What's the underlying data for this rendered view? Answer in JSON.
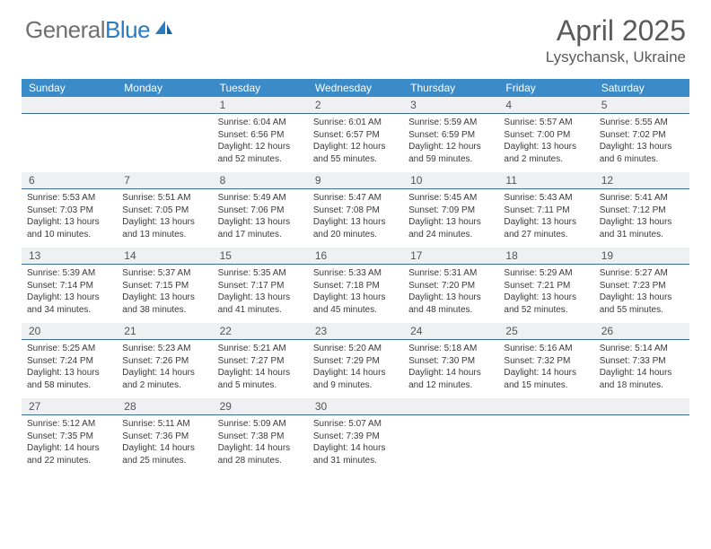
{
  "brand": {
    "name_gray": "General",
    "name_blue": "Blue"
  },
  "title": "April 2025",
  "location": "Lysychansk, Ukraine",
  "weekdays": [
    "Sunday",
    "Monday",
    "Tuesday",
    "Wednesday",
    "Thursday",
    "Friday",
    "Saturday"
  ],
  "colors": {
    "header_bar": "#3b8bc8",
    "daynum_bg": "#eef0f2",
    "rule": "#3b6fa0",
    "text": "#3a3a3a",
    "title_text": "#5a5a5a",
    "logo_gray": "#6f6f6f",
    "logo_blue": "#2a7bbf"
  },
  "weeks": [
    [
      null,
      null,
      {
        "d": "1",
        "sr": "Sunrise: 6:04 AM",
        "ss": "Sunset: 6:56 PM",
        "dl": "Daylight: 12 hours and 52 minutes."
      },
      {
        "d": "2",
        "sr": "Sunrise: 6:01 AM",
        "ss": "Sunset: 6:57 PM",
        "dl": "Daylight: 12 hours and 55 minutes."
      },
      {
        "d": "3",
        "sr": "Sunrise: 5:59 AM",
        "ss": "Sunset: 6:59 PM",
        "dl": "Daylight: 12 hours and 59 minutes."
      },
      {
        "d": "4",
        "sr": "Sunrise: 5:57 AM",
        "ss": "Sunset: 7:00 PM",
        "dl": "Daylight: 13 hours and 2 minutes."
      },
      {
        "d": "5",
        "sr": "Sunrise: 5:55 AM",
        "ss": "Sunset: 7:02 PM",
        "dl": "Daylight: 13 hours and 6 minutes."
      }
    ],
    [
      {
        "d": "6",
        "sr": "Sunrise: 5:53 AM",
        "ss": "Sunset: 7:03 PM",
        "dl": "Daylight: 13 hours and 10 minutes."
      },
      {
        "d": "7",
        "sr": "Sunrise: 5:51 AM",
        "ss": "Sunset: 7:05 PM",
        "dl": "Daylight: 13 hours and 13 minutes."
      },
      {
        "d": "8",
        "sr": "Sunrise: 5:49 AM",
        "ss": "Sunset: 7:06 PM",
        "dl": "Daylight: 13 hours and 17 minutes."
      },
      {
        "d": "9",
        "sr": "Sunrise: 5:47 AM",
        "ss": "Sunset: 7:08 PM",
        "dl": "Daylight: 13 hours and 20 minutes."
      },
      {
        "d": "10",
        "sr": "Sunrise: 5:45 AM",
        "ss": "Sunset: 7:09 PM",
        "dl": "Daylight: 13 hours and 24 minutes."
      },
      {
        "d": "11",
        "sr": "Sunrise: 5:43 AM",
        "ss": "Sunset: 7:11 PM",
        "dl": "Daylight: 13 hours and 27 minutes."
      },
      {
        "d": "12",
        "sr": "Sunrise: 5:41 AM",
        "ss": "Sunset: 7:12 PM",
        "dl": "Daylight: 13 hours and 31 minutes."
      }
    ],
    [
      {
        "d": "13",
        "sr": "Sunrise: 5:39 AM",
        "ss": "Sunset: 7:14 PM",
        "dl": "Daylight: 13 hours and 34 minutes."
      },
      {
        "d": "14",
        "sr": "Sunrise: 5:37 AM",
        "ss": "Sunset: 7:15 PM",
        "dl": "Daylight: 13 hours and 38 minutes."
      },
      {
        "d": "15",
        "sr": "Sunrise: 5:35 AM",
        "ss": "Sunset: 7:17 PM",
        "dl": "Daylight: 13 hours and 41 minutes."
      },
      {
        "d": "16",
        "sr": "Sunrise: 5:33 AM",
        "ss": "Sunset: 7:18 PM",
        "dl": "Daylight: 13 hours and 45 minutes."
      },
      {
        "d": "17",
        "sr": "Sunrise: 5:31 AM",
        "ss": "Sunset: 7:20 PM",
        "dl": "Daylight: 13 hours and 48 minutes."
      },
      {
        "d": "18",
        "sr": "Sunrise: 5:29 AM",
        "ss": "Sunset: 7:21 PM",
        "dl": "Daylight: 13 hours and 52 minutes."
      },
      {
        "d": "19",
        "sr": "Sunrise: 5:27 AM",
        "ss": "Sunset: 7:23 PM",
        "dl": "Daylight: 13 hours and 55 minutes."
      }
    ],
    [
      {
        "d": "20",
        "sr": "Sunrise: 5:25 AM",
        "ss": "Sunset: 7:24 PM",
        "dl": "Daylight: 13 hours and 58 minutes."
      },
      {
        "d": "21",
        "sr": "Sunrise: 5:23 AM",
        "ss": "Sunset: 7:26 PM",
        "dl": "Daylight: 14 hours and 2 minutes."
      },
      {
        "d": "22",
        "sr": "Sunrise: 5:21 AM",
        "ss": "Sunset: 7:27 PM",
        "dl": "Daylight: 14 hours and 5 minutes."
      },
      {
        "d": "23",
        "sr": "Sunrise: 5:20 AM",
        "ss": "Sunset: 7:29 PM",
        "dl": "Daylight: 14 hours and 9 minutes."
      },
      {
        "d": "24",
        "sr": "Sunrise: 5:18 AM",
        "ss": "Sunset: 7:30 PM",
        "dl": "Daylight: 14 hours and 12 minutes."
      },
      {
        "d": "25",
        "sr": "Sunrise: 5:16 AM",
        "ss": "Sunset: 7:32 PM",
        "dl": "Daylight: 14 hours and 15 minutes."
      },
      {
        "d": "26",
        "sr": "Sunrise: 5:14 AM",
        "ss": "Sunset: 7:33 PM",
        "dl": "Daylight: 14 hours and 18 minutes."
      }
    ],
    [
      {
        "d": "27",
        "sr": "Sunrise: 5:12 AM",
        "ss": "Sunset: 7:35 PM",
        "dl": "Daylight: 14 hours and 22 minutes."
      },
      {
        "d": "28",
        "sr": "Sunrise: 5:11 AM",
        "ss": "Sunset: 7:36 PM",
        "dl": "Daylight: 14 hours and 25 minutes."
      },
      {
        "d": "29",
        "sr": "Sunrise: 5:09 AM",
        "ss": "Sunset: 7:38 PM",
        "dl": "Daylight: 14 hours and 28 minutes."
      },
      {
        "d": "30",
        "sr": "Sunrise: 5:07 AM",
        "ss": "Sunset: 7:39 PM",
        "dl": "Daylight: 14 hours and 31 minutes."
      },
      null,
      null,
      null
    ]
  ]
}
